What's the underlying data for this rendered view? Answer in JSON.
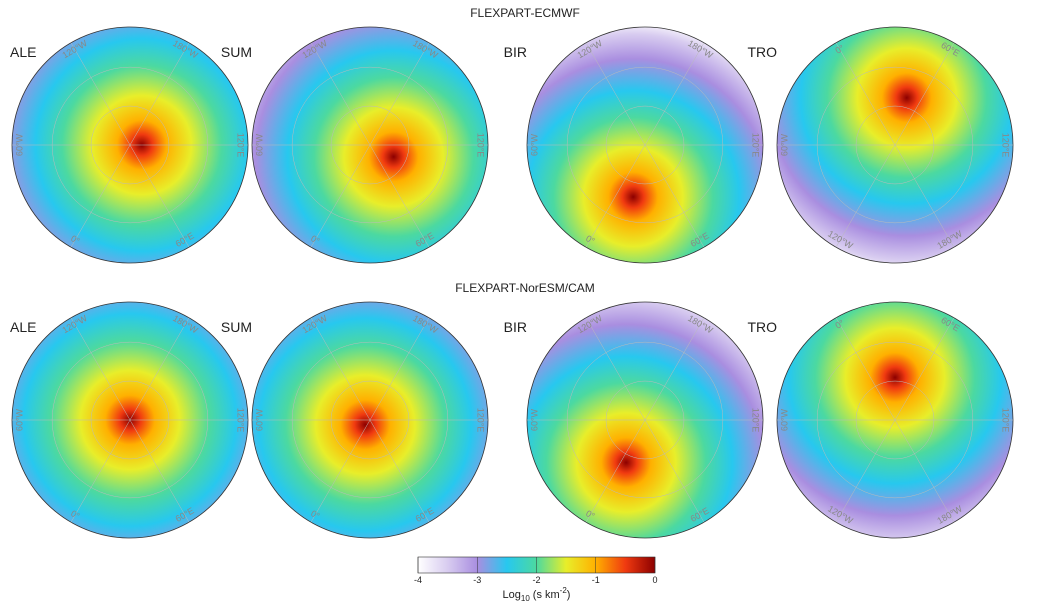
{
  "figure": {
    "rows": [
      {
        "title": "FLEXPART-ECMWF",
        "panels": [
          {
            "label": "ALE",
            "lon_labels": [
              "120°W",
              "180°W",
              "60°W",
              "120°E",
              "0°",
              "60°E"
            ]
          },
          {
            "label": "SUM",
            "lon_labels": [
              "120°W",
              "180°W",
              "60°W",
              "120°E",
              "0°",
              "60°E"
            ]
          },
          {
            "label": "BIR",
            "lon_labels": [
              "120°W",
              "180°W",
              "60°W",
              "120°E",
              "0°",
              "60°E"
            ]
          },
          {
            "label": "TRO",
            "lon_labels": [
              "0°",
              "60°E",
              "60°W",
              "120°E",
              "120°W",
              "180°W"
            ]
          }
        ]
      },
      {
        "title": "FLEXPART-NorESM/CAM",
        "panels": [
          {
            "label": "ALE",
            "lon_labels": [
              "120°W",
              "180°W",
              "60°W",
              "120°E",
              "0°",
              "60°E"
            ]
          },
          {
            "label": "SUM",
            "lon_labels": [
              "120°W",
              "180°W",
              "60°W",
              "120°E",
              "0°",
              "60°E"
            ]
          },
          {
            "label": "BIR",
            "lon_labels": [
              "120°W",
              "180°W",
              "60°W",
              "120°E",
              "0°",
              "60°E"
            ]
          },
          {
            "label": "TRO",
            "lon_labels": [
              "0°",
              "60°E",
              "60°W",
              "120°E",
              "120°W",
              "180°W"
            ]
          }
        ]
      }
    ],
    "colorbar": {
      "lim": [
        -4,
        0
      ],
      "ticks": [
        -4,
        -3,
        -2,
        -1,
        0
      ],
      "colormap": [
        "#ffffff",
        "#d8ccf0",
        "#a98ee0",
        "#27c8ef",
        "#4cd9a0",
        "#e8ee2a",
        "#ffb000",
        "#f03a10",
        "#8c0000"
      ],
      "label": {
        "base": "Log",
        "sub": "10",
        "unit": "(s km",
        "sup": "-2",
        "close": ")"
      }
    }
  }
}
